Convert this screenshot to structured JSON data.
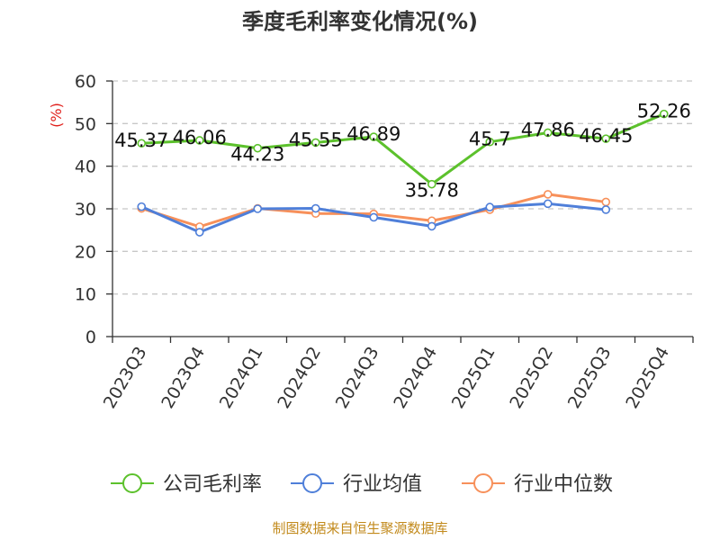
{
  "chart_data": {
    "type": "line",
    "title": "季度毛利率变化情况(%)",
    "ylabel": "(%)",
    "xlabel": "",
    "ylim": [
      0,
      60
    ],
    "yticks": [
      0,
      10,
      20,
      30,
      40,
      50,
      60
    ],
    "categories": [
      "2023Q3",
      "2023Q4",
      "2024Q1",
      "2024Q2",
      "2024Q3",
      "2024Q4",
      "2025Q1",
      "2025Q2",
      "2025Q3",
      "2025Q4"
    ],
    "grid": true,
    "legend_position": "bottom",
    "series": [
      {
        "name": "公司毛利率",
        "color": "#5cc12c",
        "values": [
          45.37,
          46.06,
          44.23,
          45.55,
          46.89,
          35.78,
          45.7,
          47.86,
          46.45,
          52.26
        ],
        "labels": [
          "45.37",
          "46.06",
          "44.23",
          "45.55",
          "46.89",
          "35.78",
          "45.7",
          "47.86",
          "46.45",
          "52.26"
        ]
      },
      {
        "name": "行业均值",
        "color": "#4f7fd9",
        "values": [
          30.5,
          24.5,
          30.0,
          30.1,
          28.0,
          25.9,
          30.4,
          31.2,
          29.8,
          null
        ]
      },
      {
        "name": "行业中位数",
        "color": "#f7905a",
        "values": [
          30.1,
          25.8,
          30.1,
          28.9,
          28.8,
          27.2,
          29.8,
          33.4,
          31.6,
          null
        ]
      }
    ],
    "source": "制图数据来自恒生聚源数据库",
    "colors": {
      "axis": "#333333",
      "grid": "#c8c8c8",
      "unit": "#e0201c",
      "source": "#c28a1c"
    }
  }
}
